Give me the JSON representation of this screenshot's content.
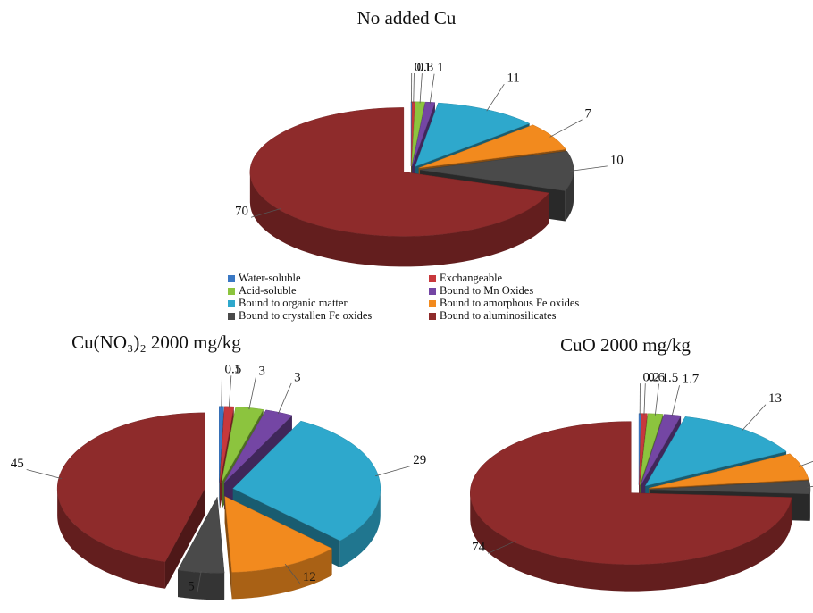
{
  "chart_data": [
    {
      "type": "pie",
      "title": "No added Cu",
      "categories": [
        "Water-soluble",
        "Exchangeable",
        "Acid-soluble",
        "Bound to Mn Oxides",
        "Bound to organic matter",
        "Bound to amorphous Fe oxides",
        "Bound to crystallen Fe oxides",
        "Bound to aluminosilicates"
      ],
      "colors": [
        "#3a78c4",
        "#c8383c",
        "#8cc43e",
        "#7446a4",
        "#2ea8cc",
        "#f28a1e",
        "#4a4a4a",
        "#8e2b2b"
      ],
      "values": [
        0.1,
        0.3,
        1,
        1,
        11,
        7,
        10,
        70
      ]
    },
    {
      "type": "pie",
      "title": "Cu(NO₃)₂ 2000  mg/kg",
      "values": [
        0.5,
        1,
        3,
        3,
        29,
        12,
        5,
        45
      ]
    },
    {
      "type": "pie",
      "title": "CuO 2000 mg/kg",
      "values": [
        0.2,
        0.6,
        1.5,
        1.7,
        13,
        6,
        3,
        74
      ]
    }
  ]
}
